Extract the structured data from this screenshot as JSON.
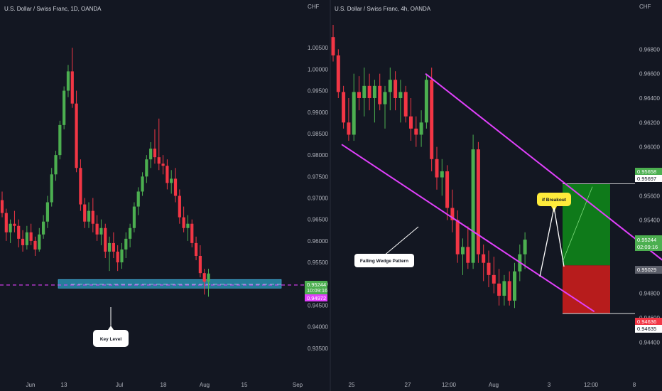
{
  "left_pane": {
    "title": "U.S. Dollar / Swiss Franc, 1D, OANDA",
    "currency": "CHF",
    "callout": "Key Level",
    "tags": {
      "price": "0.95244",
      "countdown": "10:09:16",
      "line": "0.94972"
    }
  },
  "right_pane": {
    "title": "U.S. Dollar / Swiss Franc, 4h, OANDA",
    "currency": "CHF",
    "wedge_label": "Falling Wedge Pattern",
    "breakout_label": "if Breakout",
    "tags": {
      "target": "0.95658",
      "target_line": "0.95697",
      "price": "0.95244",
      "countdown": "02:09:16",
      "entry": "0.95029",
      "stop": "0.94636",
      "stop_line": "0.94635"
    }
  },
  "colors": {
    "background": "#131722",
    "up": "#4caf50",
    "down": "#f23645",
    "wedge": "#e040fb",
    "zone": "#2a8fb0",
    "target_fill": "#0f7a1a",
    "stop_fill": "#b71c1c",
    "callout_yellow": "#ffeb3b"
  },
  "chart_data": [
    {
      "type": "candlestick",
      "title": "U.S. Dollar / Swiss Franc, 1D, OANDA",
      "ylabel": "CHF",
      "ylim": [
        0.93,
        1.01
      ],
      "y_ticks": [
        "1.00500",
        "1.00000",
        "0.99500",
        "0.99000",
        "0.98500",
        "0.98000",
        "0.97500",
        "0.97000",
        "0.96500",
        "0.96000",
        "0.95500",
        "0.95000",
        "0.94500",
        "0.94000",
        "0.93500"
      ],
      "x_ticks": [
        "Jun",
        "13",
        "Jul",
        "18",
        "Aug",
        "15",
        "Sep"
      ],
      "key_level_zone": [
        0.949,
        0.951
      ],
      "key_level_line": 0.94972,
      "ohlc": [
        [
          0.9695,
          0.9715,
          0.9655,
          0.9665
        ],
        [
          0.9665,
          0.9675,
          0.96,
          0.962
        ],
        [
          0.962,
          0.965,
          0.9595,
          0.964
        ],
        [
          0.964,
          0.967,
          0.962,
          0.9635
        ],
        [
          0.9635,
          0.965,
          0.9585,
          0.9605
        ],
        [
          0.9605,
          0.9625,
          0.9575,
          0.959
        ],
        [
          0.959,
          0.9635,
          0.958,
          0.962
        ],
        [
          0.962,
          0.964,
          0.959,
          0.96
        ],
        [
          0.96,
          0.961,
          0.9565,
          0.958
        ],
        [
          0.958,
          0.963,
          0.9575,
          0.9615
        ],
        [
          0.9615,
          0.966,
          0.9605,
          0.9645
        ],
        [
          0.9645,
          0.9705,
          0.963,
          0.969
        ],
        [
          0.969,
          0.977,
          0.968,
          0.9755
        ],
        [
          0.9755,
          0.981,
          0.974,
          0.98
        ],
        [
          0.98,
          0.988,
          0.979,
          0.987
        ],
        [
          0.987,
          0.996,
          0.986,
          0.995
        ],
        [
          0.995,
          1.001,
          0.9935,
          0.9995
        ],
        [
          0.9995,
          1.005,
          0.991,
          0.992
        ],
        [
          0.992,
          0.995,
          0.976,
          0.977
        ],
        [
          0.977,
          0.979,
          0.967,
          0.9685
        ],
        [
          0.9685,
          0.97,
          0.963,
          0.9645
        ],
        [
          0.9645,
          0.969,
          0.963,
          0.967
        ],
        [
          0.967,
          0.97,
          0.962,
          0.964
        ],
        [
          0.964,
          0.966,
          0.96,
          0.9615
        ],
        [
          0.9615,
          0.965,
          0.959,
          0.963
        ],
        [
          0.963,
          0.964,
          0.956,
          0.9575
        ],
        [
          0.9575,
          0.961,
          0.953,
          0.9595
        ],
        [
          0.9595,
          0.962,
          0.956,
          0.9575
        ],
        [
          0.9575,
          0.959,
          0.953,
          0.955
        ],
        [
          0.955,
          0.9595,
          0.9535,
          0.958
        ],
        [
          0.958,
          0.962,
          0.956,
          0.9605
        ],
        [
          0.9605,
          0.964,
          0.9585,
          0.963
        ],
        [
          0.963,
          0.969,
          0.962,
          0.968
        ],
        [
          0.968,
          0.9725,
          0.966,
          0.9715
        ],
        [
          0.9715,
          0.976,
          0.9705,
          0.975
        ],
        [
          0.975,
          0.98,
          0.9735,
          0.979
        ],
        [
          0.979,
          0.983,
          0.977,
          0.9815
        ],
        [
          0.9815,
          0.986,
          0.978,
          0.9795
        ],
        [
          0.9795,
          0.9885,
          0.9765,
          0.978
        ],
        [
          0.978,
          0.98,
          0.9755,
          0.9775
        ],
        [
          0.9775,
          0.979,
          0.972,
          0.9735
        ],
        [
          0.9735,
          0.9765,
          0.971,
          0.9745
        ],
        [
          0.9745,
          0.977,
          0.969,
          0.9705
        ],
        [
          0.9705,
          0.972,
          0.964,
          0.9655
        ],
        [
          0.9655,
          0.968,
          0.962,
          0.963
        ],
        [
          0.963,
          0.966,
          0.96,
          0.964
        ],
        [
          0.964,
          0.965,
          0.9585,
          0.9595
        ],
        [
          0.9595,
          0.961,
          0.9555,
          0.9565
        ],
        [
          0.9565,
          0.959,
          0.9515,
          0.9525
        ],
        [
          0.9525,
          0.9535,
          0.9475,
          0.9505
        ],
        [
          0.9505,
          0.9535,
          0.947,
          0.9524
        ]
      ]
    },
    {
      "type": "candlestick",
      "title": "U.S. Dollar / Swiss Franc, 4h, OANDA",
      "ylabel": "CHF",
      "ylim": [
        0.9425,
        0.97
      ],
      "y_ticks": [
        "0.96800",
        "0.96600",
        "0.96400",
        "0.96200",
        "0.96000",
        "0.95800",
        "0.95600",
        "0.95400",
        "0.95200",
        "0.95000",
        "0.94800",
        "0.94600",
        "0.94400"
      ],
      "x_ticks": [
        "25",
        "27",
        "12:00",
        "Aug",
        "3",
        "12:00",
        "8"
      ],
      "wedge_upper": [
        [
          0,
          0.966
        ],
        [
          48,
          0.9505
        ]
      ],
      "wedge_lower": [
        [
          0,
          0.9602
        ],
        [
          49,
          0.9465
        ]
      ],
      "entry": 0.95029,
      "target": 0.95697,
      "stop": 0.94635,
      "ohlc": [
        [
          0.969,
          0.97,
          0.967,
          0.9675
        ],
        [
          0.9675,
          0.968,
          0.964,
          0.9645
        ],
        [
          0.9645,
          0.965,
          0.9615,
          0.962
        ],
        [
          0.962,
          0.964,
          0.9605,
          0.961
        ],
        [
          0.961,
          0.966,
          0.9605,
          0.9645
        ],
        [
          0.9645,
          0.9658,
          0.963,
          0.964
        ],
        [
          0.964,
          0.9665,
          0.9625,
          0.965
        ],
        [
          0.965,
          0.966,
          0.963,
          0.964
        ],
        [
          0.964,
          0.9655,
          0.962,
          0.965
        ],
        [
          0.965,
          0.966,
          0.963,
          0.9635
        ],
        [
          0.9635,
          0.965,
          0.9615,
          0.9645
        ],
        [
          0.9645,
          0.9665,
          0.963,
          0.9655
        ],
        [
          0.9655,
          0.9662,
          0.963,
          0.964
        ],
        [
          0.964,
          0.9655,
          0.962,
          0.9645
        ],
        [
          0.9645,
          0.965,
          0.962,
          0.9625
        ],
        [
          0.9625,
          0.964,
          0.9605,
          0.9615
        ],
        [
          0.9615,
          0.9625,
          0.96,
          0.961
        ],
        [
          0.961,
          0.963,
          0.96,
          0.962
        ],
        [
          0.962,
          0.966,
          0.9615,
          0.9655
        ],
        [
          0.9655,
          0.9665,
          0.958,
          0.959
        ],
        [
          0.959,
          0.96,
          0.9565,
          0.9575
        ],
        [
          0.9575,
          0.959,
          0.956,
          0.958
        ],
        [
          0.958,
          0.9585,
          0.954,
          0.955
        ],
        [
          0.955,
          0.9565,
          0.953,
          0.954
        ],
        [
          0.954,
          0.9548,
          0.9505,
          0.9512
        ],
        [
          0.9512,
          0.9525,
          0.9495,
          0.9518
        ],
        [
          0.9518,
          0.9535,
          0.95,
          0.9505
        ],
        [
          0.9505,
          0.961,
          0.95,
          0.9598
        ],
        [
          0.9598,
          0.9604,
          0.9505,
          0.9512
        ],
        [
          0.9512,
          0.952,
          0.949,
          0.9505
        ],
        [
          0.9505,
          0.9515,
          0.9485,
          0.9495
        ],
        [
          0.9495,
          0.951,
          0.948,
          0.9488
        ],
        [
          0.9488,
          0.95,
          0.947,
          0.9478
        ],
        [
          0.9478,
          0.9495,
          0.947,
          0.949
        ],
        [
          0.949,
          0.9498,
          0.947,
          0.9474
        ],
        [
          0.9474,
          0.9505,
          0.9468,
          0.9498
        ],
        [
          0.9498,
          0.952,
          0.949,
          0.9512
        ],
        [
          0.9512,
          0.953,
          0.95,
          0.9524
        ]
      ]
    }
  ]
}
